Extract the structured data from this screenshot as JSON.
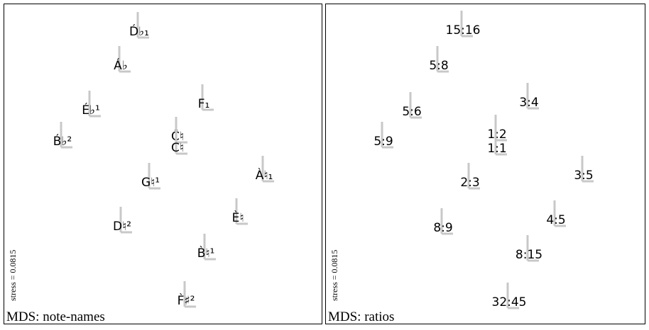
{
  "panels": [
    {
      "title": "MDS: note-names",
      "stress": "stress = 0.0815",
      "nodes": [
        {
          "label": "D́♭₁"
        },
        {
          "label": "Á♭"
        },
        {
          "label": "É♭¹"
        },
        {
          "label": "B́♭²"
        },
        {
          "label": "F₁"
        },
        {
          "label": "Ĉ♮"
        },
        {
          "label": "C♮"
        },
        {
          "label": "G♮¹"
        },
        {
          "label": "À♮₁"
        },
        {
          "label": "D♮²"
        },
        {
          "label": "È♮"
        },
        {
          "label": "B̀♮¹"
        },
        {
          "label": "F̀♯²"
        }
      ]
    },
    {
      "title": "MDS: ratios",
      "stress": "stress = 0.0815",
      "nodes": [
        {
          "label": "15:16"
        },
        {
          "label": "5:8"
        },
        {
          "label": "3:4"
        },
        {
          "label": "5:6"
        },
        {
          "label": "1:2"
        },
        {
          "label": "1:1"
        },
        {
          "label": "5:9"
        },
        {
          "label": "2:3"
        },
        {
          "label": "3:5"
        },
        {
          "label": "4:5"
        },
        {
          "label": "8:9"
        },
        {
          "label": "8:15"
        },
        {
          "label": "32:45"
        }
      ]
    }
  ]
}
